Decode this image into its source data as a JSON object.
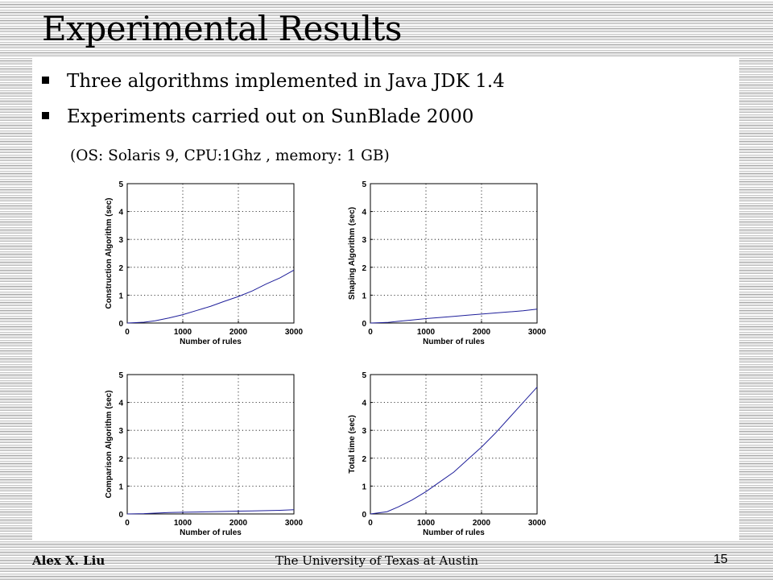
{
  "slide": {
    "title": "Experimental Results",
    "bullets": [
      "Three algorithms implemented in Java JDK 1.4",
      "Experiments carried out on SunBlade 2000"
    ],
    "subline": "(OS: Solaris 9, CPU:1Ghz , memory: 1 GB)"
  },
  "footer": {
    "author": "Alex X. Liu",
    "institution": "The University of Texas at Austin",
    "page": "15"
  },
  "colors": {
    "line": "#1f1f9a",
    "grid": "#000000"
  },
  "chart_data": [
    {
      "type": "line",
      "xlabel": "Number of rules",
      "ylabel": "Construction Algorithm (sec)",
      "xlim": [
        0,
        3000
      ],
      "ylim": [
        0,
        5
      ],
      "xticks": [
        0,
        1000,
        2000,
        3000
      ],
      "yticks": [
        0,
        1,
        2,
        3,
        4,
        5
      ],
      "grid": true,
      "x": [
        0,
        300,
        500,
        750,
        1000,
        1250,
        1500,
        1750,
        2000,
        2250,
        2500,
        2750,
        3000
      ],
      "y": [
        0,
        0.03,
        0.08,
        0.18,
        0.3,
        0.45,
        0.6,
        0.78,
        0.95,
        1.15,
        1.4,
        1.62,
        1.9
      ]
    },
    {
      "type": "line",
      "xlabel": "Number of rules",
      "ylabel": "Shaping Algorithm (sec)",
      "xlim": [
        0,
        3000
      ],
      "ylim": [
        0,
        5
      ],
      "xticks": [
        0,
        1000,
        2000,
        3000
      ],
      "yticks": [
        0,
        1,
        2,
        3,
        4,
        5
      ],
      "grid": true,
      "x": [
        0,
        300,
        500,
        750,
        1000,
        1250,
        1500,
        1750,
        2000,
        2250,
        2500,
        2750,
        3000
      ],
      "y": [
        0,
        0.02,
        0.06,
        0.11,
        0.16,
        0.2,
        0.24,
        0.28,
        0.32,
        0.36,
        0.4,
        0.44,
        0.5
      ]
    },
    {
      "type": "line",
      "xlabel": "Number of rules",
      "ylabel": "Comparison Algorithm (sec)",
      "xlim": [
        0,
        3000
      ],
      "ylim": [
        0,
        5
      ],
      "xticks": [
        0,
        1000,
        2000,
        3000
      ],
      "yticks": [
        0,
        1,
        2,
        3,
        4,
        5
      ],
      "grid": true,
      "x": [
        0,
        300,
        500,
        750,
        1000,
        1250,
        1500,
        1750,
        2000,
        2250,
        2500,
        2750,
        3000
      ],
      "y": [
        0,
        0.01,
        0.03,
        0.05,
        0.06,
        0.07,
        0.08,
        0.09,
        0.1,
        0.11,
        0.12,
        0.13,
        0.15
      ]
    },
    {
      "type": "line",
      "xlabel": "Number of rules",
      "ylabel": "Total time (sec)",
      "xlim": [
        0,
        3000
      ],
      "ylim": [
        0,
        5
      ],
      "xticks": [
        0,
        1000,
        2000,
        3000
      ],
      "yticks": [
        0,
        1,
        2,
        3,
        4,
        5
      ],
      "grid": true,
      "x": [
        0,
        300,
        500,
        750,
        1000,
        1250,
        1500,
        1750,
        2000,
        2250,
        2500,
        2750,
        3000
      ],
      "y": [
        0,
        0.08,
        0.25,
        0.5,
        0.8,
        1.15,
        1.5,
        1.95,
        2.4,
        2.9,
        3.45,
        4.0,
        4.55
      ]
    }
  ]
}
